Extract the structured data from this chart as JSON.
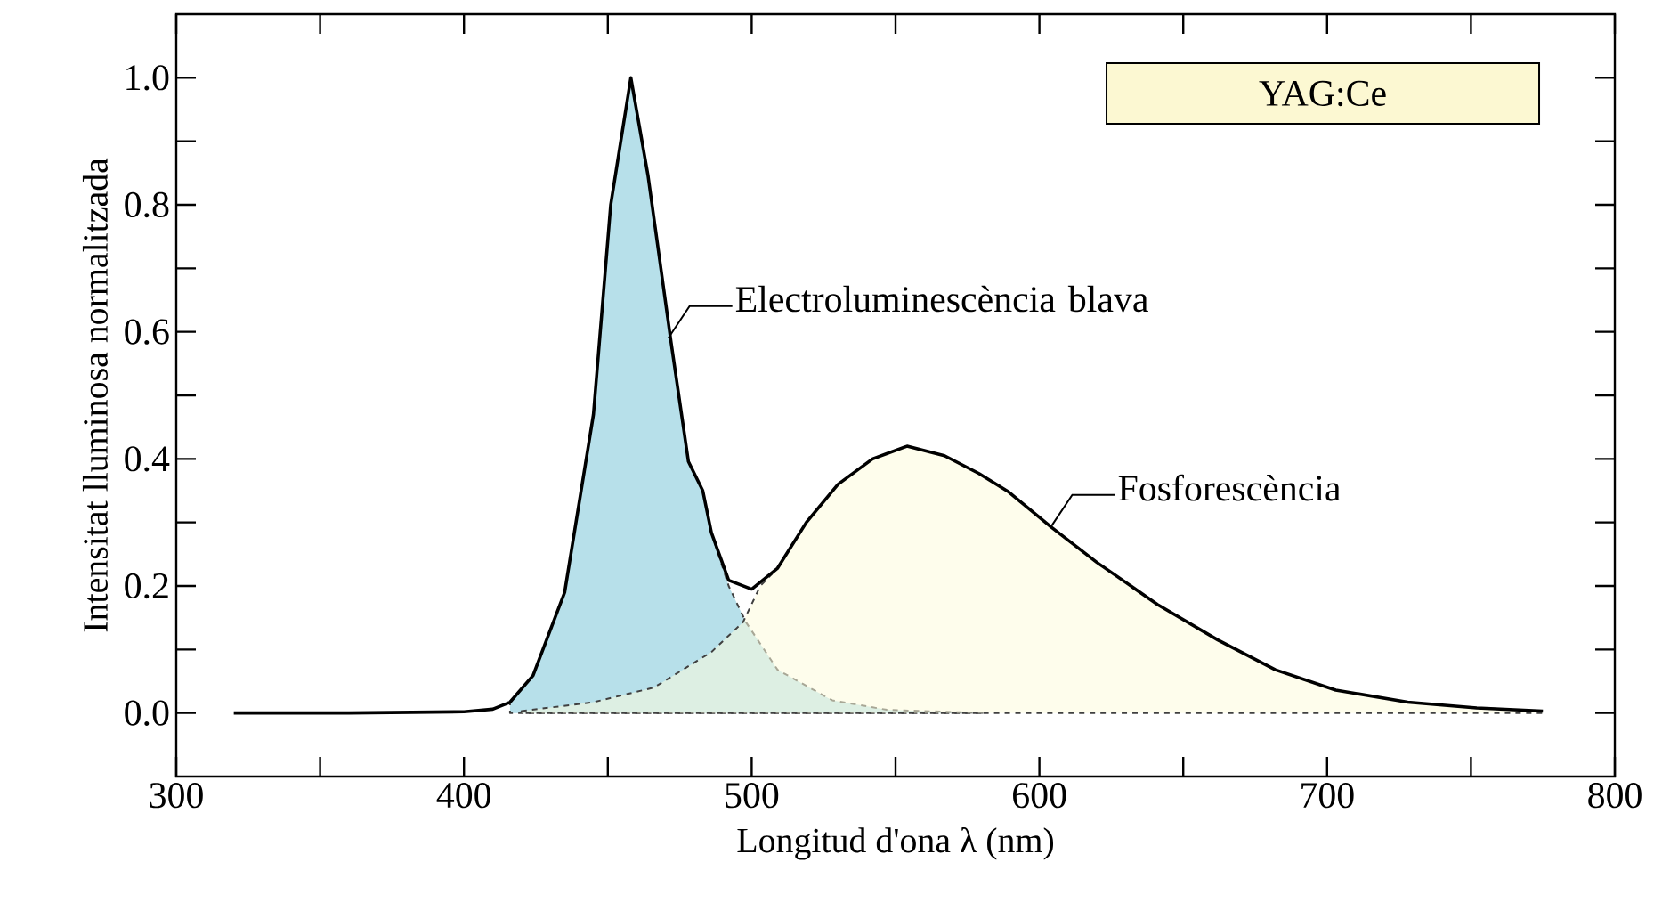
{
  "chart_data": {
    "type": "area",
    "xlabel": "Longitud d'ona λ (nm)",
    "ylabel": "Intensitat lluminosa normalitzada",
    "xlim": [
      300,
      800
    ],
    "ylim": [
      -0.1,
      1.1
    ],
    "xticks": [
      300,
      {
        "value": 350,
        "label": null
      },
      400,
      {
        "value": 450,
        "label": null
      },
      500,
      {
        "value": 550,
        "label": null
      },
      600,
      {
        "value": 650,
        "label": null
      },
      700,
      {
        "value": 750,
        "label": null
      },
      800
    ],
    "yticks": [
      {
        "value": 0,
        "label": "0.0"
      },
      {
        "value": 0.1,
        "label": null
      },
      {
        "value": 0.2,
        "label": "0.2"
      },
      {
        "value": 0.3,
        "label": null
      },
      {
        "value": 0.4,
        "label": "0.4"
      },
      {
        "value": 0.5,
        "label": null
      },
      {
        "value": 0.6,
        "label": "0.6"
      },
      {
        "value": 0.7,
        "label": null
      },
      {
        "value": 0.8,
        "label": "0.8"
      },
      {
        "value": 0.9,
        "label": null
      },
      {
        "value": 1.0,
        "label": "1.0"
      }
    ],
    "series": [
      {
        "color": "#fdfbdc",
        "line_style": "dashed",
        "x": [
          420,
          445,
          466,
          486,
          497,
          503,
          509,
          519,
          530,
          542,
          554,
          567,
          579,
          589,
          604,
          620,
          641,
          662,
          682,
          703,
          728,
          752,
          775
        ],
        "values": [
          0.003,
          0.017,
          0.04,
          0.096,
          0.143,
          0.2,
          0.228,
          0.3,
          0.36,
          0.4,
          0.42,
          0.405,
          0.377,
          0.349,
          0.293,
          0.237,
          0.171,
          0.115,
          0.068,
          0.036,
          0.017,
          0.008,
          0.003
        ]
      },
      {
        "color": "#b7e0ea",
        "line_style": "dashed",
        "x": [
          416,
          424,
          435,
          445,
          451,
          458,
          464,
          472,
          478,
          483,
          486,
          492,
          498,
          509,
          528,
          547,
          581
        ],
        "values": [
          0.017,
          0.059,
          0.19,
          0.47,
          0.8,
          1.0,
          0.845,
          0.583,
          0.396,
          0.35,
          0.284,
          0.2,
          0.143,
          0.068,
          0.02,
          0.005,
          0
        ]
      },
      {
        "type": "line",
        "color": "#000000",
        "line_style": "solid",
        "x": [
          320,
          360,
          400,
          410,
          416,
          424,
          435,
          445,
          451,
          458,
          464,
          472,
          478,
          483,
          486,
          492,
          500,
          509,
          519,
          530,
          542,
          554,
          567,
          579,
          589,
          604,
          620,
          641,
          662,
          682,
          703,
          728,
          752,
          775
        ],
        "values": [
          0,
          0,
          0.002,
          0.006,
          0.017,
          0.059,
          0.19,
          0.47,
          0.8,
          1.0,
          0.845,
          0.583,
          0.396,
          0.35,
          0.284,
          0.209,
          0.195,
          0.228,
          0.3,
          0.36,
          0.4,
          0.42,
          0.405,
          0.377,
          0.349,
          0.293,
          0.237,
          0.171,
          0.115,
          0.068,
          0.036,
          0.017,
          0.008,
          0.003
        ]
      }
    ],
    "annotations": [
      {
        "text": "Electroluminescència blava",
        "x": 471,
        "y": 0.59
      },
      {
        "text": "Fosforescència",
        "x": 604,
        "y": 0.293
      },
      "YAG:Ce"
    ]
  }
}
